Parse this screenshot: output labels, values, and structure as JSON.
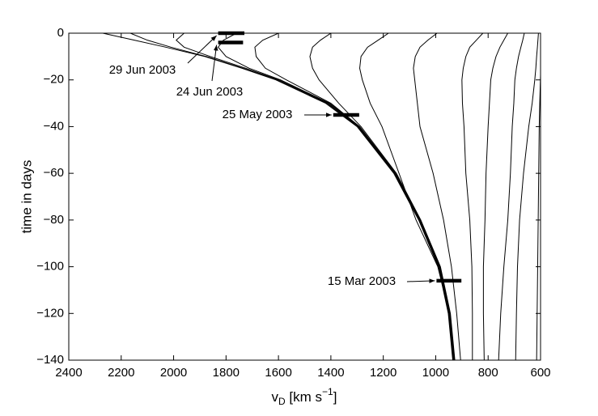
{
  "chart_data": {
    "type": "line",
    "xlabel": [
      "v",
      "D",
      " [km s",
      "−1",
      "]"
    ],
    "ylabel": "time in days",
    "xlim": [
      2400,
      600
    ],
    "ylim": [
      -140,
      0
    ],
    "xticks": [
      2400,
      2200,
      2000,
      1800,
      1600,
      1400,
      1200,
      1000,
      800,
      600
    ],
    "yticks": [
      0,
      {
        "value": -20,
        "label": "−20"
      },
      {
        "value": -40,
        "label": "−40"
      },
      {
        "value": -60,
        "label": "−60"
      },
      {
        "value": -80,
        "label": "−80"
      },
      {
        "value": -100,
        "label": "−100"
      },
      {
        "value": -120,
        "label": "−120"
      },
      {
        "value": -140,
        "label": "−140"
      }
    ],
    "color": "#000000",
    "series": [
      {
        "x": [
          2270,
          2150,
          2030,
          1880,
          1740,
          1610,
          1420,
          1300,
          1160,
          1065,
          990,
          952,
          935
        ],
        "values": [
          0,
          -3,
          -6,
          -10,
          -15,
          -20,
          -30,
          -40,
          -60,
          -80,
          -100,
          -120,
          -140
        ]
      },
      {
        "x": [
          2165,
          2100,
          2010,
          1875,
          1735,
          1605,
          1415,
          1297,
          1157,
          1063,
          988,
          950,
          933
        ],
        "values": [
          0,
          -3,
          -6,
          -10,
          -15,
          -20,
          -30,
          -40,
          -60,
          -80,
          -100,
          -120,
          -140
        ]
      },
      {
        "x": [
          1960,
          1990,
          1960,
          1860,
          1725,
          1598,
          1410,
          1294,
          1155,
          1061,
          986,
          948,
          931
        ],
        "values": [
          0,
          -3,
          -6,
          -10,
          -15,
          -20,
          -30,
          -40,
          -60,
          -80,
          -100,
          -120,
          -140
        ]
      },
      {
        "x": [
          1760,
          1810,
          1830,
          1800,
          1712,
          1592,
          1405,
          1292,
          1153,
          1059,
          984,
          946,
          929
        ],
        "values": [
          0,
          -3,
          -6,
          -10,
          -15,
          -20,
          -30,
          -40,
          -60,
          -80,
          -100,
          -120,
          -140
        ]
      },
      {
        "x": [
          1600,
          1660,
          1690,
          1685,
          1650,
          1570,
          1400,
          1290,
          1152,
          1058,
          983,
          945,
          928
        ],
        "values": [
          0,
          -3,
          -6,
          -10,
          -15,
          -20,
          -30,
          -40,
          -60,
          -80,
          -100,
          -120,
          -140
        ]
      },
      {
        "x": [
          1400,
          1440,
          1470,
          1480,
          1470,
          1445,
          1370,
          1285,
          1150,
          1057,
          982,
          944,
          927
        ],
        "values": [
          0,
          -3,
          -6,
          -10,
          -15,
          -20,
          -30,
          -40,
          -60,
          -80,
          -100,
          -120,
          -140
        ]
      },
      {
        "x": [
          1180,
          1220,
          1260,
          1285,
          1290,
          1280,
          1250,
          1205,
          1140,
          1075,
          992,
          948,
          930
        ],
        "values": [
          0,
          -3,
          -6,
          -10,
          -15,
          -20,
          -30,
          -40,
          -60,
          -80,
          -100,
          -120,
          -140
        ]
      },
      {
        "x": [
          995,
          1030,
          1060,
          1078,
          1085,
          1080,
          1070,
          1060,
          1010,
          970,
          940,
          920,
          905
        ],
        "values": [
          0,
          -3,
          -6,
          -10,
          -15,
          -20,
          -30,
          -40,
          -60,
          -80,
          -100,
          -120,
          -140
        ]
      },
      {
        "x": [
          820,
          845,
          870,
          885,
          895,
          900,
          898,
          892,
          885,
          870,
          862,
          860,
          860
        ],
        "values": [
          0,
          -3,
          -6,
          -10,
          -15,
          -20,
          -30,
          -40,
          -60,
          -80,
          -100,
          -120,
          -140
        ]
      },
      {
        "x": [
          725,
          740,
          755,
          770,
          782,
          790,
          795,
          800,
          808,
          812,
          818,
          818,
          815
        ],
        "values": [
          0,
          -3,
          -6,
          -10,
          -15,
          -20,
          -30,
          -40,
          -60,
          -80,
          -100,
          -120,
          -140
        ]
      },
      {
        "x": [
          662,
          668,
          675,
          684,
          692,
          698,
          702,
          708,
          715,
          725,
          740,
          752,
          760
        ],
        "values": [
          0,
          -3,
          -6,
          -10,
          -15,
          -20,
          -30,
          -40,
          -60,
          -80,
          -100,
          -120,
          -140
        ]
      },
      {
        "x": [
          608,
          610,
          612,
          615,
          618,
          622,
          632,
          645,
          665,
          680,
          688,
          692,
          695
        ],
        "values": [
          0,
          -3,
          -6,
          -10,
          -15,
          -20,
          -30,
          -40,
          -60,
          -80,
          -100,
          -120,
          -140
        ]
      },
      {
        "x": [
          600,
          603,
          605,
          607,
          609,
          612,
          615
        ],
        "values": [
          -18,
          -30,
          -40,
          -60,
          -80,
          -110,
          -140
        ]
      }
    ],
    "markers": [
      {
        "label": "29 Jun 2003",
        "y": 0,
        "x": [
          1830,
          1730
        ]
      },
      {
        "label": "24 Jun 2003",
        "y": -4,
        "x": [
          1830,
          1735
        ]
      },
      {
        "label": "25 May 2003",
        "y": -35,
        "x": [
          1391,
          1292
        ]
      },
      {
        "label": "15 Mar 2003",
        "y": -106,
        "x": [
          997,
          902
        ]
      }
    ]
  }
}
